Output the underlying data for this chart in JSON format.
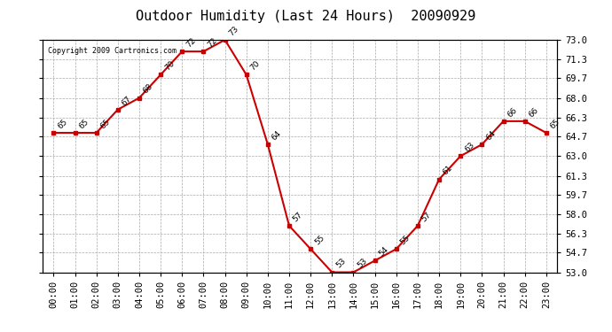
{
  "title": "Outdoor Humidity (Last 24 Hours)  20090929",
  "copyright": "Copyright 2009 Cartronics.com",
  "x_labels": [
    "00:00",
    "01:00",
    "02:00",
    "03:00",
    "04:00",
    "05:00",
    "06:00",
    "07:00",
    "08:00",
    "09:00",
    "10:00",
    "11:00",
    "12:00",
    "13:00",
    "14:00",
    "15:00",
    "16:00",
    "17:00",
    "18:00",
    "19:00",
    "20:00",
    "21:00",
    "22:00",
    "23:00"
  ],
  "hours": [
    0,
    1,
    2,
    3,
    4,
    5,
    6,
    7,
    8,
    9,
    10,
    11,
    12,
    13,
    14,
    15,
    16,
    17,
    18,
    19,
    20,
    21,
    22,
    23
  ],
  "values": [
    65,
    65,
    65,
    67,
    68,
    70,
    72,
    72,
    73,
    70,
    64,
    57,
    55,
    53,
    53,
    54,
    55,
    57,
    61,
    63,
    64,
    66,
    66,
    65
  ],
  "ylim": [
    53.0,
    73.0
  ],
  "yticks": [
    53.0,
    54.7,
    56.3,
    58.0,
    59.7,
    61.3,
    63.0,
    64.7,
    66.3,
    68.0,
    69.7,
    71.3,
    73.0
  ],
  "line_color": "#cc0000",
  "marker": "s",
  "marker_size": 3,
  "bg_color": "#ffffff",
  "grid_color": "#aaaaaa",
  "label_color": "#000000",
  "title_fontsize": 11,
  "tick_fontsize": 7.5,
  "annotation_fontsize": 6.5
}
